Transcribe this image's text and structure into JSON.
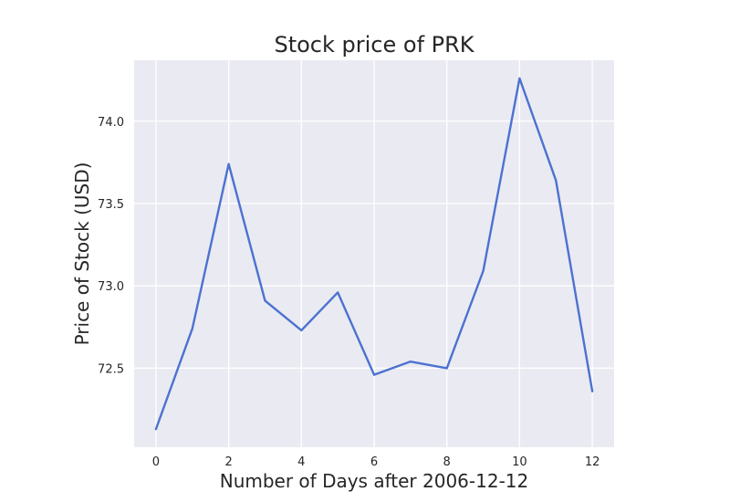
{
  "chart_data": {
    "type": "line",
    "title": "Stock price of PRK",
    "xlabel": "Number of Days after 2006-12-12",
    "ylabel": "Price of Stock (USD)",
    "x": [
      0,
      1,
      2,
      3,
      4,
      5,
      6,
      7,
      8,
      9,
      10,
      11,
      12
    ],
    "series": [
      {
        "values": [
          72.13,
          72.74,
          73.74,
          72.91,
          72.73,
          72.96,
          72.46,
          72.54,
          72.5,
          73.09,
          74.26,
          73.64,
          72.36
        ]
      }
    ],
    "xlim": [
      -0.6,
      12.6
    ],
    "ylim": [
      72.02,
      74.37
    ],
    "xticks": [
      0,
      2,
      4,
      6,
      8,
      10,
      12
    ],
    "yticks": [
      72.5,
      73.0,
      73.5,
      74.0
    ],
    "ytick_labels": [
      "72.5",
      "73.0",
      "73.5",
      "74.0"
    ],
    "grid": true,
    "legend": "none",
    "colors": {
      "line": "#4c72d0",
      "plot_background": "#eaeaf2",
      "grid": "#ffffff"
    }
  }
}
